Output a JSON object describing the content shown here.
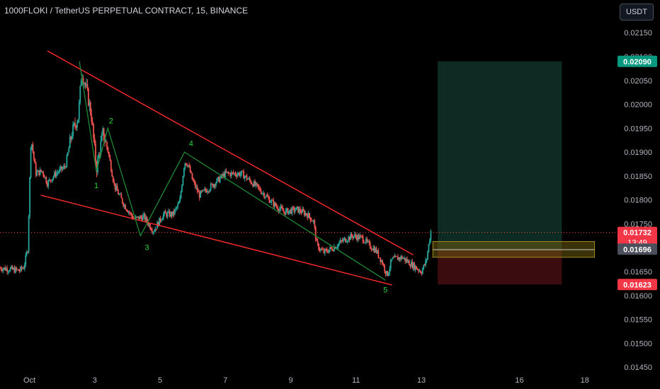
{
  "header": {
    "title": "1000FLOKI / TetherUS PERPETUAL CONTRACT, 15, BINANCE",
    "currency_button": "USDT"
  },
  "colors": {
    "background": "#000000",
    "up": "#26a69a",
    "down": "#ef5350",
    "trendline": "#ff2a2a",
    "wave": "#1e8a35",
    "wave_label": "#29d63a",
    "target_zone": "#0d2b22",
    "stop_zone": "#3a0c10",
    "entry_zone": "#6b5a10",
    "current_price_line": "#ef5350"
  },
  "chart_data": {
    "type": "candlestick",
    "title": "1000FLOKI / TetherUS PERPETUAL CONTRACT, 15, BINANCE",
    "y_axis": {
      "ylim": [
        0.01434,
        0.02174
      ],
      "ticks": [
        "0.02150",
        "0.02100",
        "0.02050",
        "0.02000",
        "0.01950",
        "0.01900",
        "0.01850",
        "0.01800",
        "0.01750",
        "0.01700",
        "0.01650",
        "0.01600",
        "0.01550",
        "0.01500",
        "0.01450"
      ]
    },
    "x_axis": {
      "ticks": [
        "Oct",
        "3",
        "5",
        "7",
        "9",
        "11",
        "13",
        "16",
        "18"
      ],
      "tick_days": [
        1,
        3,
        5,
        7,
        9,
        11,
        13,
        16,
        18
      ],
      "xlim_days": [
        0.1,
        18.96
      ]
    },
    "price_path": [
      [
        0.1,
        0.01658
      ],
      [
        0.7,
        0.01652
      ],
      [
        0.83,
        0.0166
      ],
      [
        0.95,
        0.01698
      ],
      [
        1.05,
        0.0193
      ],
      [
        1.2,
        0.01856
      ],
      [
        1.4,
        0.0186
      ],
      [
        1.55,
        0.01835
      ],
      [
        1.8,
        0.01855
      ],
      [
        2.1,
        0.0187
      ],
      [
        2.3,
        0.0194
      ],
      [
        2.5,
        0.01975
      ],
      [
        2.6,
        0.0207
      ],
      [
        2.75,
        0.0203
      ],
      [
        2.9,
        0.01975
      ],
      [
        3.05,
        0.01865
      ],
      [
        3.25,
        0.0194
      ],
      [
        3.4,
        0.01905
      ],
      [
        3.6,
        0.0183
      ],
      [
        3.9,
        0.0179
      ],
      [
        4.2,
        0.0176
      ],
      [
        4.5,
        0.01765
      ],
      [
        4.8,
        0.01735
      ],
      [
        5.1,
        0.0177
      ],
      [
        5.4,
        0.0177
      ],
      [
        5.6,
        0.01795
      ],
      [
        5.75,
        0.0188
      ],
      [
        5.85,
        0.01875
      ],
      [
        6.0,
        0.0184
      ],
      [
        6.2,
        0.0181
      ],
      [
        6.5,
        0.01825
      ],
      [
        7.0,
        0.01855
      ],
      [
        7.5,
        0.01855
      ],
      [
        8.0,
        0.01825
      ],
      [
        8.5,
        0.0179
      ],
      [
        8.8,
        0.01775
      ],
      [
        9.2,
        0.0178
      ],
      [
        9.5,
        0.0177
      ],
      [
        9.7,
        0.01755
      ],
      [
        9.8,
        0.01705
      ],
      [
        10.0,
        0.0169
      ],
      [
        10.3,
        0.017
      ],
      [
        10.6,
        0.01715
      ],
      [
        10.9,
        0.01725
      ],
      [
        11.2,
        0.0172
      ],
      [
        11.4,
        0.01705
      ],
      [
        11.6,
        0.01695
      ],
      [
        11.8,
        0.0167
      ],
      [
        11.95,
        0.01642
      ],
      [
        12.1,
        0.01675
      ],
      [
        12.4,
        0.0168
      ],
      [
        12.7,
        0.01665
      ],
      [
        13.0,
        0.0165
      ],
      [
        13.15,
        0.01672
      ],
      [
        13.3,
        0.0174
      ],
      [
        13.32,
        0.01732
      ]
    ],
    "trendlines": [
      {
        "name": "upper",
        "points": [
          [
            1.55,
            0.02112
          ],
          [
            12.75,
            0.01685
          ]
        ]
      },
      {
        "name": "lower",
        "points": [
          [
            1.35,
            0.0181
          ],
          [
            12.1,
            0.01622
          ]
        ]
      }
    ],
    "wave_path": [
      [
        2.53,
        0.0209
      ],
      [
        3.05,
        0.0186
      ],
      [
        3.4,
        0.0195
      ],
      [
        4.4,
        0.01725
      ],
      [
        5.75,
        0.019
      ],
      [
        11.9,
        0.01632
      ]
    ],
    "wave_labels": [
      {
        "text": "1",
        "x": 3.05,
        "y": 0.01831
      },
      {
        "text": "2",
        "x": 3.5,
        "y": 0.01966
      },
      {
        "text": "3",
        "x": 4.6,
        "y": 0.01701
      },
      {
        "text": "4",
        "x": 5.95,
        "y": 0.01919
      },
      {
        "text": "5",
        "x": 11.9,
        "y": 0.01612
      }
    ],
    "position": {
      "entry": 0.01696,
      "target": 0.0209,
      "stop": 0.01623,
      "start_day": 13.5,
      "end_day": 17.3,
      "entry_zone": [
        0.0168,
        0.01713
      ]
    },
    "price_labels": {
      "target": "0.02090",
      "current": "0.01732",
      "countdown": "13:49",
      "entry": "0.01696",
      "stop": "0.01623"
    }
  }
}
